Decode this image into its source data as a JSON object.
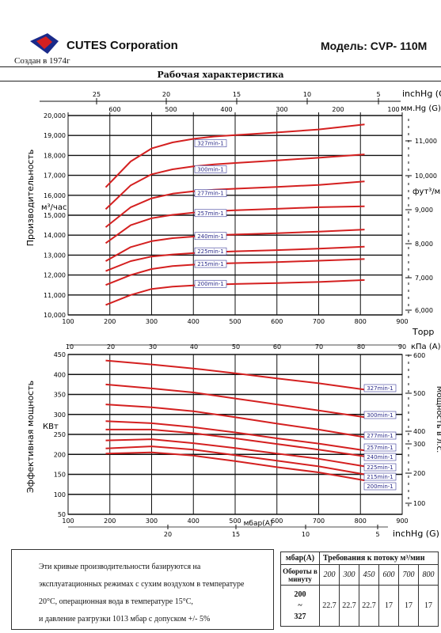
{
  "header": {
    "company": "CUTES Corporation",
    "founded": "Создан в 1974г",
    "model": "Модель: CVP- 110M",
    "title": "Рабочая характеристика"
  },
  "colors": {
    "curve": "#d42020",
    "grid": "#111111",
    "label_border": "#3a3a9a",
    "label_text": "#2a2a8a",
    "logo_red": "#d42020",
    "logo_blue": "#1a2a8a"
  },
  "top_axes": {
    "inhg_label": "inchHg (G)",
    "inhg_ticks": [
      "25",
      "20",
      "15",
      "10",
      "5"
    ],
    "mmhg_label": "мм.Hg (G)",
    "mmhg_ticks": [
      "600",
      "500",
      "400",
      "300",
      "200",
      "100"
    ]
  },
  "capacity_chart": {
    "ylabel": "Производительность",
    "yunit": "м³/час",
    "right_label": "фут³/мин",
    "right_ticks": [
      "11,000",
      "10,000",
      "9,000",
      "8,000",
      "7,000",
      "6,000"
    ],
    "xunit": "Торр"
  },
  "power_chart": {
    "ylabel": "Эффективная мощность",
    "yunit": "КВт",
    "right_label": "Мощность в л.с.",
    "right_ticks": [
      "600",
      "500",
      "400",
      "300",
      "200",
      "100"
    ],
    "kpa_label": "кПа (A)",
    "kpa_ticks": [
      "10",
      "20",
      "30",
      "40",
      "50",
      "60",
      "70",
      "80",
      "90"
    ],
    "xunit": "мбар(A)",
    "bottom_inhg_label": "inchHg (G)",
    "bottom_inhg_ticks": [
      "20",
      "15",
      "10",
      "5"
    ]
  },
  "chart_data": [
    {
      "type": "line",
      "title": "Рабочая характеристика",
      "ylabel": "Производительность м³/час",
      "xlabel": "Торр",
      "xlim": [
        100,
        900
      ],
      "ylim": [
        10000,
        20000
      ],
      "x_ticks": [
        100,
        200,
        300,
        400,
        500,
        600,
        700,
        800,
        900
      ],
      "y_ticks": [
        10000,
        11000,
        12000,
        13000,
        14000,
        15000,
        16000,
        17000,
        18000,
        19000,
        20000
      ],
      "y_tick_labels": [
        "10,000",
        "11,000",
        "12,000",
        "13,000",
        "14,000",
        "15,000",
        "16,000",
        "17,000",
        "18,000",
        "19,000",
        "20,000"
      ],
      "x": [
        190,
        250,
        300,
        350,
        400,
        450,
        500,
        600,
        700,
        810
      ],
      "series": [
        {
          "name": "327min-1",
          "values": [
            16400,
            17700,
            18350,
            18650,
            18830,
            18950,
            19020,
            19150,
            19300,
            19550
          ]
        },
        {
          "name": "300min-1",
          "values": [
            15300,
            16500,
            17050,
            17300,
            17450,
            17550,
            17620,
            17750,
            17880,
            18050
          ]
        },
        {
          "name": "277min-1",
          "values": [
            14400,
            15400,
            15850,
            16080,
            16200,
            16280,
            16330,
            16420,
            16520,
            16700
          ]
        },
        {
          "name": "257min-1",
          "values": [
            13600,
            14500,
            14850,
            15020,
            15130,
            15200,
            15250,
            15320,
            15400,
            15450
          ]
        },
        {
          "name": "240min-1",
          "values": [
            12700,
            13400,
            13700,
            13850,
            13930,
            14000,
            14030,
            14100,
            14180,
            14280
          ]
        },
        {
          "name": "225min-1",
          "values": [
            12200,
            12700,
            12930,
            13030,
            13100,
            13150,
            13190,
            13250,
            13320,
            13420
          ]
        },
        {
          "name": "215min-1",
          "values": [
            11500,
            12000,
            12300,
            12450,
            12520,
            12570,
            12600,
            12650,
            12720,
            12800
          ]
        },
        {
          "name": "200min-1",
          "values": [
            10500,
            11000,
            11300,
            11420,
            11480,
            11520,
            11550,
            11600,
            11650,
            11750
          ]
        }
      ]
    },
    {
      "type": "line",
      "ylabel": "Эффективная мощность КВт",
      "xlabel": "мбар(A)",
      "xlim": [
        100,
        900
      ],
      "ylim": [
        50,
        450
      ],
      "x_ticks": [
        100,
        200,
        300,
        400,
        500,
        600,
        700,
        800,
        900
      ],
      "y_ticks": [
        50,
        100,
        150,
        200,
        250,
        300,
        350,
        400,
        450
      ],
      "x": [
        190,
        300,
        400,
        500,
        600,
        700,
        810
      ],
      "series": [
        {
          "name": "327min-1",
          "values": [
            435,
            425,
            415,
            403,
            390,
            378,
            362
          ]
        },
        {
          "name": "300min-1",
          "values": [
            375,
            365,
            355,
            340,
            325,
            310,
            293
          ]
        },
        {
          "name": "277min-1",
          "values": [
            325,
            318,
            308,
            293,
            277,
            262,
            243
          ]
        },
        {
          "name": "257min-1",
          "values": [
            283,
            278,
            268,
            255,
            240,
            227,
            210
          ]
        },
        {
          "name": "240min-1",
          "values": [
            262,
            262,
            253,
            240,
            226,
            212,
            195
          ]
        },
        {
          "name": "225min-1",
          "values": [
            235,
            238,
            228,
            216,
            202,
            189,
            170
          ]
        },
        {
          "name": "215min-1",
          "values": [
            215,
            220,
            212,
            198,
            184,
            170,
            150
          ]
        },
        {
          "name": "200min-1",
          "values": [
            202,
            205,
            197,
            183,
            168,
            155,
            135
          ]
        }
      ]
    }
  ],
  "note": {
    "lines": [
      "Эти кривые производительности базируются на",
      "эксплуатационных режимах с сухим воздухом в температуре",
      "20°С, операционная вода в температуре 15°С,",
      "и давление разгрузки 1013 мбар с допуском +/- 5%"
    ]
  },
  "requirements": {
    "col_header": "мбар(A)",
    "title": "Требования к потоку м³/мин",
    "row_header": "Обороты в минуту",
    "pressures": [
      "200",
      "300",
      "450",
      "600",
      "700",
      "800"
    ],
    "rpm_range": [
      "200",
      "~",
      "327"
    ],
    "values": [
      "22.7",
      "22.7",
      "22.7",
      "17",
      "17",
      "17"
    ]
  }
}
